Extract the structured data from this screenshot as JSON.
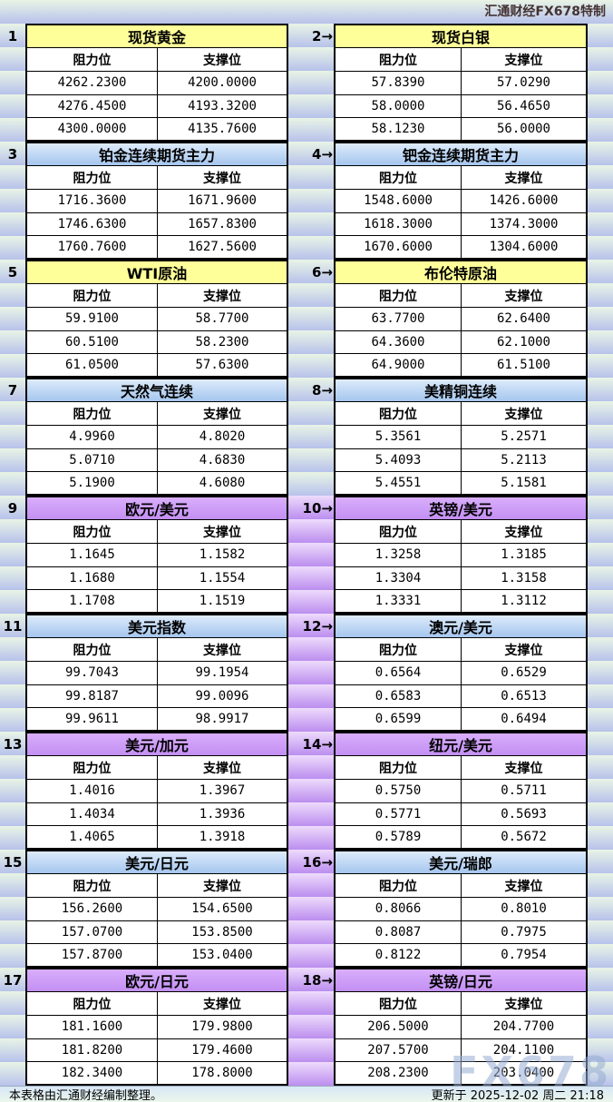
{
  "header": {
    "brand": "汇通财经FX678特制"
  },
  "columns": {
    "resistance": "阻力位",
    "support": "支撑位"
  },
  "colors": {
    "title_yellow": "#ffff99",
    "title_blue": "#a5c6ee",
    "title_purple": "#cc99ff",
    "band_green": "#e9f4e6",
    "band_blue": "#b7c2eb",
    "band_purple": "#bb8eef"
  },
  "panels": [
    {
      "num_label": "1",
      "title": "现货黄金",
      "theme": "yellow",
      "rows": [
        [
          "4262.2300",
          "4200.0000"
        ],
        [
          "4276.4500",
          "4193.3200"
        ],
        [
          "4300.0000",
          "4135.7600"
        ]
      ]
    },
    {
      "num_label": "2→",
      "title": "现货白银",
      "theme": "yellow",
      "rows": [
        [
          "57.8390",
          "57.0290"
        ],
        [
          "58.0000",
          "56.4650"
        ],
        [
          "58.1230",
          "56.0000"
        ]
      ]
    },
    {
      "num_label": "3",
      "title": "铂金连续期货主力",
      "theme": "blue",
      "rows": [
        [
          "1716.3600",
          "1671.9600"
        ],
        [
          "1746.6300",
          "1657.8300"
        ],
        [
          "1760.7600",
          "1627.5600"
        ]
      ]
    },
    {
      "num_label": "4→",
      "title": "钯金连续期货主力",
      "theme": "blue",
      "rows": [
        [
          "1548.6000",
          "1426.6000"
        ],
        [
          "1618.3000",
          "1374.3000"
        ],
        [
          "1670.6000",
          "1304.6000"
        ]
      ]
    },
    {
      "num_label": "5",
      "title": "WTI原油",
      "theme": "yellow",
      "rows": [
        [
          "59.9100",
          "58.7700"
        ],
        [
          "60.5100",
          "58.2300"
        ],
        [
          "61.0500",
          "57.6300"
        ]
      ]
    },
    {
      "num_label": "6→",
      "title": "布伦特原油",
      "theme": "yellow",
      "rows": [
        [
          "63.7700",
          "62.6400"
        ],
        [
          "64.3600",
          "62.1000"
        ],
        [
          "64.9000",
          "61.5100"
        ]
      ]
    },
    {
      "num_label": "7",
      "title": "天然气连续",
      "theme": "blue",
      "rows": [
        [
          "4.9960",
          "4.8020"
        ],
        [
          "5.0710",
          "4.6830"
        ],
        [
          "5.1900",
          "4.6080"
        ]
      ]
    },
    {
      "num_label": "8→",
      "title": "美精铜连续",
      "theme": "blue",
      "rows": [
        [
          "5.3561",
          "5.2571"
        ],
        [
          "5.4093",
          "5.2113"
        ],
        [
          "5.4551",
          "5.1581"
        ]
      ]
    },
    {
      "num_label": "9",
      "title": "欧元/美元",
      "theme": "purple",
      "rows": [
        [
          "1.1645",
          "1.1582"
        ],
        [
          "1.1680",
          "1.1554"
        ],
        [
          "1.1708",
          "1.1519"
        ]
      ]
    },
    {
      "num_label": "10→",
      "title": "英镑/美元",
      "theme": "purple",
      "rows": [
        [
          "1.3258",
          "1.3185"
        ],
        [
          "1.3304",
          "1.3158"
        ],
        [
          "1.3331",
          "1.3112"
        ]
      ]
    },
    {
      "num_label": "11",
      "title": "美元指数",
      "theme": "blue",
      "rows": [
        [
          "99.7043",
          "99.1954"
        ],
        [
          "99.8187",
          "99.0096"
        ],
        [
          "99.9611",
          "98.9917"
        ]
      ]
    },
    {
      "num_label": "12→",
      "title": "澳元/美元",
      "theme": "blue",
      "rows": [
        [
          "0.6564",
          "0.6529"
        ],
        [
          "0.6583",
          "0.6513"
        ],
        [
          "0.6599",
          "0.6494"
        ]
      ]
    },
    {
      "num_label": "13",
      "title": "美元/加元",
      "theme": "purple",
      "rows": [
        [
          "1.4016",
          "1.3967"
        ],
        [
          "1.4034",
          "1.3936"
        ],
        [
          "1.4065",
          "1.3918"
        ]
      ]
    },
    {
      "num_label": "14→",
      "title": "纽元/美元",
      "theme": "purple",
      "rows": [
        [
          "0.5750",
          "0.5711"
        ],
        [
          "0.5771",
          "0.5693"
        ],
        [
          "0.5789",
          "0.5672"
        ]
      ]
    },
    {
      "num_label": "15",
      "title": "美元/日元",
      "theme": "blue",
      "rows": [
        [
          "156.2600",
          "154.6500"
        ],
        [
          "157.0700",
          "153.8500"
        ],
        [
          "157.8700",
          "153.0400"
        ]
      ]
    },
    {
      "num_label": "16→",
      "title": "美元/瑞郎",
      "theme": "blue",
      "rows": [
        [
          "0.8066",
          "0.8010"
        ],
        [
          "0.8087",
          "0.7975"
        ],
        [
          "0.8122",
          "0.7954"
        ]
      ]
    },
    {
      "num_label": "17",
      "title": "欧元/日元",
      "theme": "purple",
      "rows": [
        [
          "181.1600",
          "179.9800"
        ],
        [
          "181.8200",
          "179.4600"
        ],
        [
          "182.3400",
          "178.8000"
        ]
      ]
    },
    {
      "num_label": "18→",
      "title": "英镑/日元",
      "theme": "purple",
      "rows": [
        [
          "206.5000",
          "204.7700"
        ],
        [
          "207.5700",
          "204.1100"
        ],
        [
          "208.2300",
          "203.0400"
        ]
      ]
    }
  ],
  "footer": {
    "note": "本表格由汇通财经编制整理。",
    "updated": "更新于 2025-12-02 周二 21:18"
  },
  "watermark": "FX678"
}
